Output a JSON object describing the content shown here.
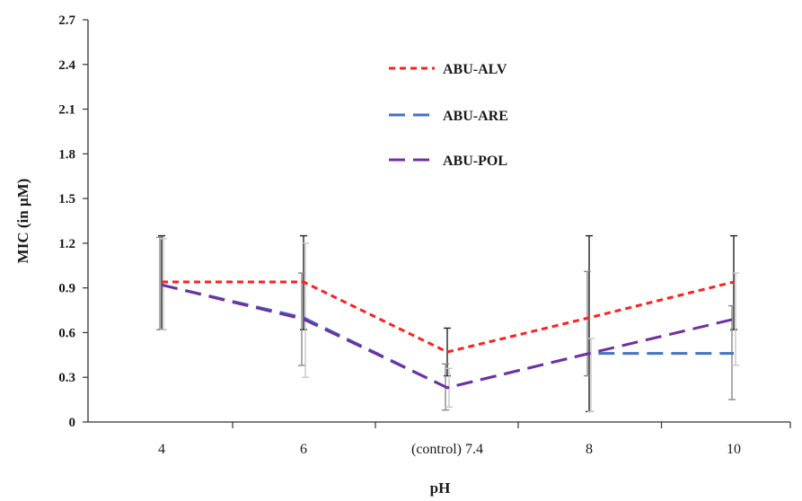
{
  "chart_data": {
    "type": "line",
    "xlabel": "pH",
    "ylabel": "MIC (in μM)",
    "categories": [
      "4",
      "6",
      "(control) 7.4",
      "8",
      "10"
    ],
    "ylim": [
      0,
      2.7
    ],
    "yticks": [
      "0",
      "0.3",
      "0.6",
      "0.9",
      "1.2",
      "1.5",
      "1.8",
      "2.1",
      "2.4",
      "2.7"
    ],
    "grid": false,
    "legend_position": "top-center",
    "series": [
      {
        "name": "ABU-ALV",
        "color": "#ff2020",
        "dash": "short-dash",
        "values": [
          0.94,
          0.94,
          0.47,
          0.7,
          0.94
        ],
        "error_low": [
          0.62,
          0.62,
          0.31,
          0.07,
          0.62
        ],
        "error_high": [
          1.25,
          1.25,
          0.63,
          1.25,
          1.25
        ],
        "error_color": "#222222"
      },
      {
        "name": "ABU-ARE",
        "color": "#4472c4",
        "dash": "long-dash",
        "values": [
          0.92,
          0.7,
          0.23,
          0.46,
          0.46
        ],
        "error_low": [
          0.62,
          0.38,
          0.08,
          0.31,
          0.15
        ],
        "error_high": [
          1.24,
          1.0,
          0.39,
          1.01,
          0.78
        ],
        "error_color": "#8a8a8a"
      },
      {
        "name": "ABU-POL",
        "color": "#7030a0",
        "dash": "long-dash",
        "values": [
          0.92,
          0.69,
          0.23,
          0.46,
          0.69
        ],
        "error_low": [
          0.62,
          0.3,
          0.1,
          0.07,
          0.38
        ],
        "error_high": [
          1.23,
          1.2,
          0.36,
          0.56,
          1.0
        ],
        "error_color": "#c8c8c8"
      }
    ]
  }
}
